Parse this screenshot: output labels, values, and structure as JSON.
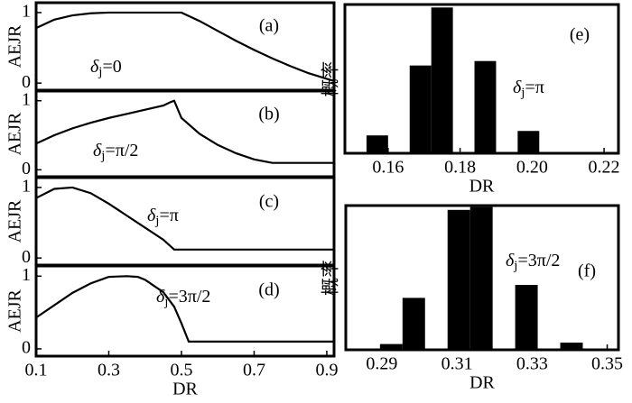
{
  "chart_data": [
    {
      "type": "line",
      "panel": "(a)",
      "ylabel": "AEJR",
      "color": "#000000",
      "annotation": {
        "symbol": "δ",
        "sub": "j",
        "text": "=0"
      },
      "x": [
        0.1,
        0.15,
        0.2,
        0.25,
        0.3,
        0.35,
        0.4,
        0.45,
        0.5,
        0.55,
        0.6,
        0.65,
        0.7,
        0.75,
        0.8,
        0.85,
        0.9,
        0.92
      ],
      "values": [
        0.78,
        0.9,
        0.96,
        0.99,
        1,
        1,
        1,
        1,
        1,
        0.88,
        0.74,
        0.6,
        0.47,
        0.35,
        0.24,
        0.14,
        0.06,
        0.03
      ],
      "xlim": [
        0.1,
        0.92
      ],
      "ylim": [
        -0.1,
        1.14
      ],
      "yticks": [
        0,
        1
      ]
    },
    {
      "type": "line",
      "panel": "(b)",
      "ylabel": "AEJR",
      "color": "#000000",
      "annotation": {
        "symbol": "δ",
        "sub": "j",
        "text": "=π/2"
      },
      "x": [
        0.1,
        0.15,
        0.2,
        0.25,
        0.3,
        0.35,
        0.4,
        0.45,
        0.47,
        0.48,
        0.5,
        0.55,
        0.6,
        0.65,
        0.7,
        0.75,
        0.8,
        0.85,
        0.9,
        0.92
      ],
      "values": [
        0.38,
        0.5,
        0.6,
        0.68,
        0.75,
        0.81,
        0.87,
        0.93,
        0.98,
        1,
        0.75,
        0.52,
        0.36,
        0.24,
        0.15,
        0.1,
        0.1,
        0.1,
        0.1,
        0.1
      ],
      "xlim": [
        0.1,
        0.92
      ],
      "ylim": [
        -0.1,
        1.14
      ],
      "yticks": [
        0,
        1
      ]
    },
    {
      "type": "line",
      "panel": "(c)",
      "ylabel": "AEJR",
      "color": "#000000",
      "annotation": {
        "symbol": "δ",
        "sub": "j",
        "text": "=π"
      },
      "x": [
        0.1,
        0.15,
        0.2,
        0.25,
        0.3,
        0.35,
        0.4,
        0.45,
        0.48,
        0.6,
        0.7,
        0.8,
        0.9,
        0.92
      ],
      "values": [
        0.85,
        0.98,
        1,
        0.92,
        0.77,
        0.6,
        0.43,
        0.26,
        0.12,
        0.12,
        0.12,
        0.12,
        0.12,
        0.12
      ],
      "xlim": [
        0.1,
        0.92
      ],
      "ylim": [
        -0.1,
        1.14
      ],
      "yticks": [
        0,
        1
      ]
    },
    {
      "type": "line",
      "panel": "(d)",
      "ylabel": "AEJR",
      "xlabel": "DR",
      "color": "#000000",
      "annotation": {
        "symbol": "δ",
        "sub": "j",
        "text": "=3π/2"
      },
      "x": [
        0.1,
        0.15,
        0.2,
        0.25,
        0.3,
        0.35,
        0.38,
        0.4,
        0.45,
        0.48,
        0.5,
        0.52,
        0.6,
        0.7,
        0.8,
        0.9,
        0.92
      ],
      "values": [
        0.43,
        0.6,
        0.77,
        0.9,
        0.99,
        1,
        0.99,
        0.95,
        0.78,
        0.58,
        0.35,
        0.1,
        0.1,
        0.1,
        0.1,
        0.1,
        0.1
      ],
      "xlim": [
        0.1,
        0.92
      ],
      "ylim": [
        -0.1,
        1.14
      ],
      "yticks": [
        0,
        1
      ],
      "xticks": [
        0.1,
        0.3,
        0.5,
        0.7,
        0.9
      ]
    },
    {
      "type": "histogram",
      "panel": "(e)",
      "ylabel": "概率",
      "xlabel": "DR",
      "color": "#000000",
      "annotation": {
        "symbol": "δ",
        "sub": "j",
        "text": "=π"
      },
      "bins": [
        0.154,
        0.16,
        0.166,
        0.172,
        0.178,
        0.184,
        0.19,
        0.196,
        0.202
      ],
      "values": [
        0.12,
        0,
        0.59,
        0.98,
        0,
        0.62,
        0,
        0.15
      ],
      "xlim": [
        0.148,
        0.224
      ],
      "ylim": [
        0,
        1
      ],
      "xticks": [
        0.16,
        0.18,
        {
          "value": 0.2,
          "label": "0.20"
        },
        0.22
      ]
    },
    {
      "type": "histogram",
      "panel": "(f)",
      "ylabel": "概率",
      "xlabel": "DR",
      "color": "#000000",
      "annotation": {
        "symbol": "δ",
        "sub": "j",
        "text": "=3π/2"
      },
      "bins": [
        0.2895,
        0.2955,
        0.3015,
        0.3075,
        0.3135,
        0.3195,
        0.3255,
        0.3315,
        0.3375,
        0.3435
      ],
      "values": [
        0.04,
        0.36,
        0,
        0.97,
        0.99,
        0,
        0.45,
        0,
        0.05
      ],
      "xlim": [
        0.2804,
        0.353
      ],
      "ylim": [
        0,
        1
      ],
      "xticks": [
        0.29,
        0.31,
        0.33,
        0.35
      ]
    }
  ]
}
